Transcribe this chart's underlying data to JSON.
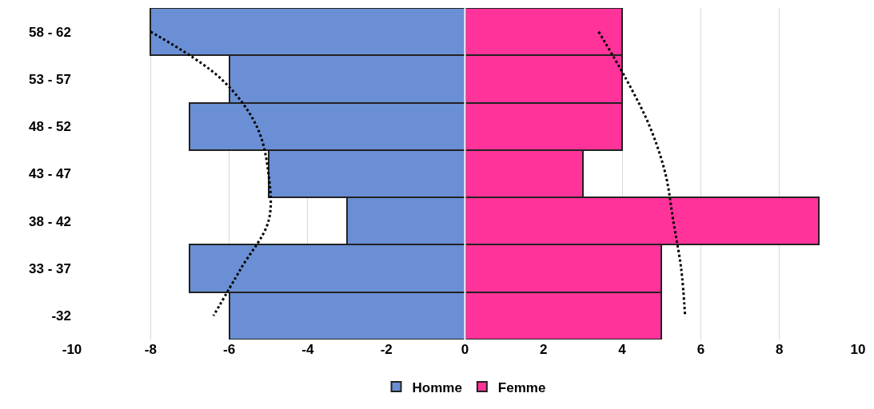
{
  "chart_data": {
    "type": "bar",
    "orientation": "horizontal",
    "stacked": true,
    "categories": [
      "58 - 62",
      "53 - 57",
      "48 - 52",
      "43 - 47",
      "38 - 42",
      "33 - 37",
      "-32"
    ],
    "series": [
      {
        "name": "Homme",
        "color": "#6a8fd4",
        "values": [
          -8,
          -6,
          -7,
          -5,
          -3,
          -7,
          -6
        ]
      },
      {
        "name": "Femme",
        "color": "#ff3399",
        "values": [
          4,
          4,
          4,
          3,
          9,
          5,
          5
        ]
      },
      {
        "type": "line",
        "color": "#000000",
        "line_style": "dotted",
        "values": [
          -8.0,
          -6.2,
          -5.3,
          -5.0,
          -5.0,
          -5.7,
          -6.4
        ]
      },
      {
        "type": "line",
        "color": "#000000",
        "line_style": "dotted",
        "values": [
          3.4,
          4.1,
          4.7,
          5.1,
          5.3,
          5.5,
          5.6
        ]
      }
    ],
    "xlim": [
      -10,
      10
    ],
    "xticks": [
      -10,
      -8,
      -6,
      -4,
      -2,
      0,
      2,
      4,
      6,
      8,
      10
    ],
    "grid": "x",
    "legend": "bottom"
  }
}
